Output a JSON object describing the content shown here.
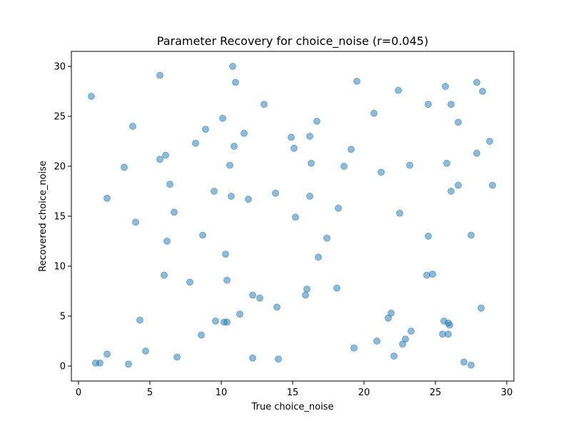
{
  "chart_data": {
    "type": "scatter",
    "title": "Parameter Recovery for choice_noise (r=0.045)",
    "xlabel": "True choice_noise",
    "ylabel": "Recovered choice_noise",
    "xlim": [
      -0.5,
      30.5
    ],
    "ylim": [
      -1.5,
      31.5
    ],
    "xticks": [
      0,
      5,
      10,
      15,
      20,
      25,
      30
    ],
    "yticks": [
      0,
      5,
      10,
      15,
      20,
      25,
      30
    ],
    "grid": false,
    "legend": "none",
    "marker_color": "#1f77b4",
    "marker_opacity": 0.5,
    "series": [
      {
        "points": [
          [
            0.9,
            27.0
          ],
          [
            1.2,
            0.3
          ],
          [
            1.5,
            0.3
          ],
          [
            2.0,
            16.8
          ],
          [
            2.0,
            1.2
          ],
          [
            3.2,
            19.9
          ],
          [
            3.5,
            0.2
          ],
          [
            3.8,
            24.0
          ],
          [
            4.0,
            14.4
          ],
          [
            4.3,
            4.6
          ],
          [
            4.7,
            1.5
          ],
          [
            5.7,
            29.1
          ],
          [
            5.7,
            20.7
          ],
          [
            6.0,
            9.1
          ],
          [
            6.1,
            21.1
          ],
          [
            6.2,
            12.5
          ],
          [
            6.4,
            18.2
          ],
          [
            6.7,
            15.4
          ],
          [
            6.9,
            0.9
          ],
          [
            7.8,
            8.4
          ],
          [
            8.2,
            22.3
          ],
          [
            8.6,
            3.1
          ],
          [
            8.7,
            13.1
          ],
          [
            8.9,
            23.7
          ],
          [
            9.5,
            17.5
          ],
          [
            9.6,
            4.5
          ],
          [
            10.1,
            24.8
          ],
          [
            10.2,
            4.4
          ],
          [
            10.3,
            11.2
          ],
          [
            10.4,
            4.4
          ],
          [
            10.4,
            8.6
          ],
          [
            10.6,
            20.1
          ],
          [
            10.7,
            17.0
          ],
          [
            10.8,
            30.0
          ],
          [
            10.9,
            22.0
          ],
          [
            11.0,
            28.4
          ],
          [
            11.3,
            5.2
          ],
          [
            11.6,
            23.3
          ],
          [
            11.9,
            16.7
          ],
          [
            12.2,
            7.1
          ],
          [
            12.2,
            0.8
          ],
          [
            12.7,
            6.8
          ],
          [
            13.0,
            26.2
          ],
          [
            13.8,
            17.3
          ],
          [
            13.9,
            5.9
          ],
          [
            14.0,
            0.7
          ],
          [
            14.9,
            22.9
          ],
          [
            15.1,
            21.8
          ],
          [
            15.2,
            14.9
          ],
          [
            15.9,
            7.1
          ],
          [
            16.0,
            7.7
          ],
          [
            16.2,
            23.0
          ],
          [
            16.2,
            17.0
          ],
          [
            16.3,
            20.3
          ],
          [
            16.7,
            24.5
          ],
          [
            16.8,
            10.9
          ],
          [
            17.4,
            12.8
          ],
          [
            18.1,
            7.8
          ],
          [
            18.2,
            15.8
          ],
          [
            18.6,
            20.0
          ],
          [
            19.1,
            21.7
          ],
          [
            19.3,
            1.8
          ],
          [
            19.5,
            28.5
          ],
          [
            20.7,
            25.3
          ],
          [
            20.9,
            2.5
          ],
          [
            21.2,
            19.4
          ],
          [
            21.7,
            4.8
          ],
          [
            21.9,
            5.3
          ],
          [
            22.1,
            1.0
          ],
          [
            22.4,
            27.6
          ],
          [
            22.5,
            15.3
          ],
          [
            22.7,
            2.2
          ],
          [
            22.9,
            2.7
          ],
          [
            23.2,
            20.1
          ],
          [
            23.3,
            3.5
          ],
          [
            24.4,
            9.1
          ],
          [
            24.5,
            26.2
          ],
          [
            24.5,
            13.0
          ],
          [
            24.8,
            9.2
          ],
          [
            25.5,
            3.2
          ],
          [
            25.6,
            4.5
          ],
          [
            25.7,
            28.0
          ],
          [
            25.8,
            20.3
          ],
          [
            25.9,
            3.2
          ],
          [
            25.9,
            4.3
          ],
          [
            26.0,
            4.1
          ],
          [
            26.1,
            26.2
          ],
          [
            26.1,
            17.5
          ],
          [
            26.6,
            24.4
          ],
          [
            26.6,
            18.1
          ],
          [
            27.0,
            0.4
          ],
          [
            27.5,
            13.1
          ],
          [
            27.5,
            0.1
          ],
          [
            27.9,
            28.4
          ],
          [
            27.9,
            21.3
          ],
          [
            28.2,
            5.8
          ],
          [
            28.3,
            27.5
          ],
          [
            28.8,
            22.5
          ],
          [
            29.0,
            18.1
          ]
        ]
      }
    ]
  }
}
